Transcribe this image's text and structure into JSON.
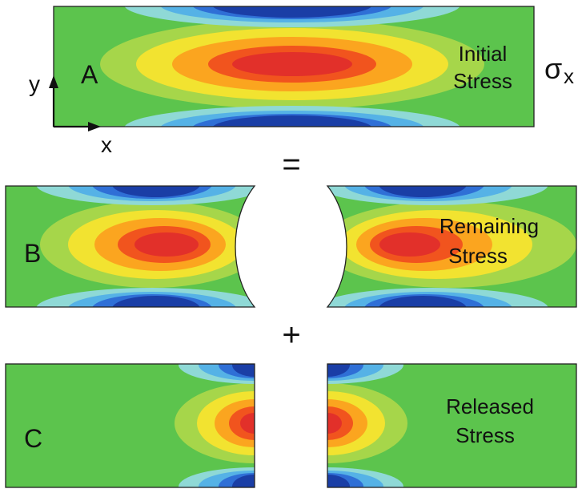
{
  "panels": {
    "a": {
      "letter": "A",
      "caption_line1": "Initial",
      "caption_line2": "Stress"
    },
    "b": {
      "letter": "B",
      "caption_line1": "Remaining",
      "caption_line2": "Stress"
    },
    "c": {
      "letter": "C",
      "caption_line1": "Released",
      "caption_line2": "Stress"
    }
  },
  "operators": {
    "equals": "=",
    "plus": "+"
  },
  "stress_symbol": {
    "sigma": "σ",
    "subscript": "x"
  },
  "axes": {
    "x_label": "x",
    "y_label": "y"
  },
  "colors": {
    "background_green": "#5cc44d",
    "contour_scale": [
      "#1a3ea6",
      "#2f6fd6",
      "#55b2e6",
      "#8fd9d6",
      "#62c873",
      "#a6d64a",
      "#f2e330",
      "#fba51f",
      "#f1541e",
      "#e2302a"
    ]
  }
}
